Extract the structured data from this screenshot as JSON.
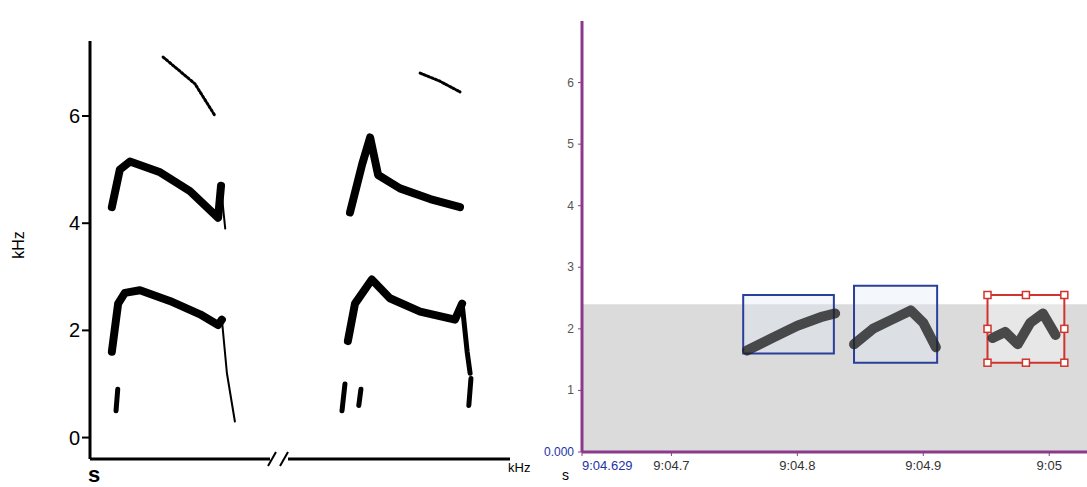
{
  "chart_data": [
    {
      "type": "line",
      "y_label": "kHz",
      "x_label": "s",
      "tick_labels": "y",
      "xlim": [
        0,
        1
      ],
      "ylim": [
        -0.4,
        7.4
      ],
      "yticks": [
        0,
        2,
        4,
        6
      ],
      "series": [
        {
          "color": "#000000",
          "line_style": "bold",
          "x": [
            0.052,
            0.067,
            0.083,
            0.119,
            0.19,
            0.262,
            0.305,
            0.314
          ],
          "values": [
            1.6,
            2.5,
            2.7,
            2.75,
            2.55,
            2.3,
            2.1,
            2.2
          ]
        },
        {
          "color": "#000000",
          "line_style": "thin",
          "x": [
            0.314,
            0.326,
            0.345
          ],
          "values": [
            2.2,
            1.2,
            0.3
          ]
        },
        {
          "color": "#000000",
          "line_style": "bold",
          "x": [
            0.052,
            0.071,
            0.095,
            0.167,
            0.238,
            0.305,
            0.312
          ],
          "values": [
            4.3,
            5.0,
            5.15,
            4.95,
            4.6,
            4.1,
            4.7
          ]
        },
        {
          "color": "#000000",
          "line_style": "thin",
          "x": [
            0.312,
            0.318,
            0.322
          ],
          "values": [
            4.7,
            4.2,
            3.9
          ]
        },
        {
          "color": "#000000",
          "line_style": "dotted",
          "x": [
            0.174,
            0.25,
            0.298
          ],
          "values": [
            7.1,
            6.6,
            6.0
          ]
        },
        {
          "color": "#000000",
          "line_style": "medium",
          "x": [
            0.062,
            0.066
          ],
          "values": [
            0.5,
            0.9
          ]
        },
        {
          "color": "#000000",
          "line_style": "bold",
          "x": [
            0.614,
            0.631,
            0.671,
            0.714,
            0.786,
            0.869,
            0.886
          ],
          "values": [
            1.8,
            2.5,
            2.95,
            2.6,
            2.35,
            2.2,
            2.5
          ]
        },
        {
          "color": "#000000",
          "line_style": "medium",
          "x": [
            0.886,
            0.898,
            0.905
          ],
          "values": [
            2.5,
            1.6,
            1.2
          ]
        },
        {
          "color": "#000000",
          "line_style": "bold",
          "x": [
            0.619,
            0.648,
            0.667,
            0.686,
            0.738,
            0.81,
            0.881
          ],
          "values": [
            4.2,
            5.1,
            5.6,
            4.9,
            4.65,
            4.45,
            4.3
          ]
        },
        {
          "color": "#000000",
          "line_style": "dotted",
          "x": [
            0.786,
            0.833,
            0.881
          ],
          "values": [
            6.8,
            6.65,
            6.45
          ]
        },
        {
          "color": "#000000",
          "line_style": "medium",
          "x": [
            0.6,
            0.607
          ],
          "values": [
            0.5,
            1.0
          ]
        },
        {
          "color": "#000000",
          "line_style": "medium",
          "x": [
            0.64,
            0.645
          ],
          "values": [
            0.6,
            0.9
          ]
        },
        {
          "color": "#000000",
          "line_style": "medium",
          "x": [
            0.902,
            0.907
          ],
          "values": [
            0.6,
            1.1
          ]
        }
      ]
    },
    {
      "type": "line",
      "y_label": "kHz",
      "x_label": "s",
      "xlim": [
        544.629,
        545.03
      ],
      "ylim": [
        0,
        7
      ],
      "xticks": [
        {
          "value": 544.629,
          "label": "9:04.629"
        },
        {
          "value": 544.7,
          "label": "9:04.7"
        },
        {
          "value": 544.8,
          "label": "9:04.8"
        },
        {
          "value": 544.9,
          "label": "9:04.9"
        },
        {
          "value": 545,
          "label": "9:05"
        }
      ],
      "yticks": [
        {
          "value": 0,
          "label": "0.000"
        },
        1,
        2,
        3,
        4,
        5,
        6
      ],
      "noise_band": [
        0,
        2.4
      ],
      "selections": [
        {
          "x": [
            544.757,
            544.829
          ],
          "y": [
            1.6,
            2.55
          ],
          "color": "#2a3f9a"
        },
        {
          "x": [
            544.845,
            544.911
          ],
          "y": [
            1.45,
            2.7
          ],
          "color": "#2a3f9a"
        },
        {
          "x": [
            544.951,
            545.012
          ],
          "y": [
            1.45,
            2.55
          ],
          "color": "#d0342c",
          "marker": "square"
        }
      ],
      "series": [
        {
          "color": "#222222",
          "line_style": "smudge",
          "x": [
            544.76,
            544.78,
            544.8,
            544.82,
            544.83
          ],
          "values": [
            1.65,
            1.85,
            2.05,
            2.2,
            2.25
          ]
        },
        {
          "color": "#222222",
          "line_style": "smudge",
          "x": [
            544.845,
            544.86,
            544.875,
            544.89,
            544.9,
            544.91
          ],
          "values": [
            1.75,
            2.0,
            2.15,
            2.3,
            2.1,
            1.7
          ]
        },
        {
          "color": "#222222",
          "line_style": "smudge",
          "x": [
            544.955,
            544.965,
            544.975,
            544.985,
            544.995,
            545.005
          ],
          "values": [
            1.85,
            1.95,
            1.75,
            2.1,
            2.25,
            1.9
          ]
        }
      ]
    }
  ]
}
